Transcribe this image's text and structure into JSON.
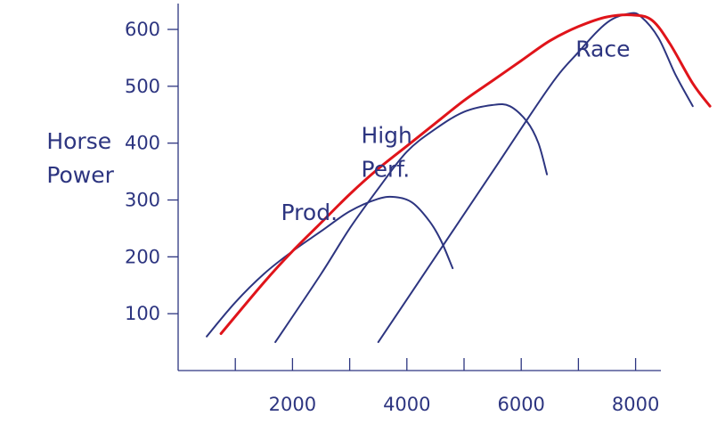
{
  "chart_data": {
    "type": "line",
    "title": "",
    "xlabel": "",
    "ylabel": [
      "Horse",
      "Power"
    ],
    "xlim": [
      0,
      8500
    ],
    "ylim": [
      0,
      650
    ],
    "x_ticks": [
      1000,
      2000,
      3000,
      4000,
      5000,
      6000,
      7000,
      8000
    ],
    "x_tick_labels": [
      "2000",
      "4000",
      "6000",
      "8000"
    ],
    "x_tick_label_values": [
      2000,
      4000,
      6000,
      8000
    ],
    "y_ticks": [
      100,
      200,
      300,
      400,
      500,
      600
    ],
    "y_tick_labels": [
      "100",
      "200",
      "300",
      "400",
      "500",
      "600"
    ],
    "grid": false,
    "series": [
      {
        "name": "Prod.",
        "color": "#2d3580",
        "points": [
          [
            500,
            60
          ],
          [
            1000,
            120
          ],
          [
            1500,
            170
          ],
          [
            2000,
            210
          ],
          [
            2500,
            245
          ],
          [
            3000,
            280
          ],
          [
            3500,
            302
          ],
          [
            3800,
            305
          ],
          [
            4100,
            295
          ],
          [
            4400,
            262
          ],
          [
            4600,
            228
          ],
          [
            4800,
            180
          ]
        ]
      },
      {
        "name": "High Perf.",
        "color": "#2d3580",
        "points": [
          [
            1700,
            50
          ],
          [
            2500,
            170
          ],
          [
            3000,
            250
          ],
          [
            3500,
            320
          ],
          [
            4000,
            385
          ],
          [
            4500,
            425
          ],
          [
            5000,
            455
          ],
          [
            5500,
            467
          ],
          [
            5800,
            465
          ],
          [
            6100,
            438
          ],
          [
            6300,
            400
          ],
          [
            6450,
            345
          ]
        ]
      },
      {
        "name": "Race",
        "color": "#2d3580",
        "points": [
          [
            3500,
            50
          ],
          [
            4500,
            200
          ],
          [
            5500,
            350
          ],
          [
            6500,
            500
          ],
          [
            7000,
            560
          ],
          [
            7500,
            612
          ],
          [
            7900,
            628
          ],
          [
            8100,
            622
          ],
          [
            8400,
            585
          ],
          [
            8700,
            520
          ],
          [
            9000,
            465
          ]
        ]
      },
      {
        "name": "",
        "color": "#e0141a",
        "points": [
          [
            750,
            65
          ],
          [
            1500,
            155
          ],
          [
            2000,
            210
          ],
          [
            2500,
            260
          ],
          [
            3000,
            310
          ],
          [
            3500,
            355
          ],
          [
            4000,
            395
          ],
          [
            4500,
            435
          ],
          [
            5000,
            475
          ],
          [
            5500,
            510
          ],
          [
            6000,
            545
          ],
          [
            6500,
            580
          ],
          [
            7000,
            605
          ],
          [
            7500,
            622
          ],
          [
            8000,
            625
          ],
          [
            8300,
            615
          ],
          [
            8600,
            575
          ],
          [
            9000,
            505
          ],
          [
            9300,
            465
          ]
        ]
      }
    ],
    "annotations": [
      {
        "text_lines": [
          "Prod."
        ],
        "x": 1800,
        "y": 265
      },
      {
        "text_lines": [
          "High",
          "Perf."
        ],
        "x": 3200,
        "y": 400
      },
      {
        "text_lines": [
          "Race"
        ],
        "x": 6950,
        "y": 552
      },
      {
        "text_lines": [
          "Horse",
          "Power"
        ],
        "x": -2300,
        "y": 390
      }
    ]
  }
}
